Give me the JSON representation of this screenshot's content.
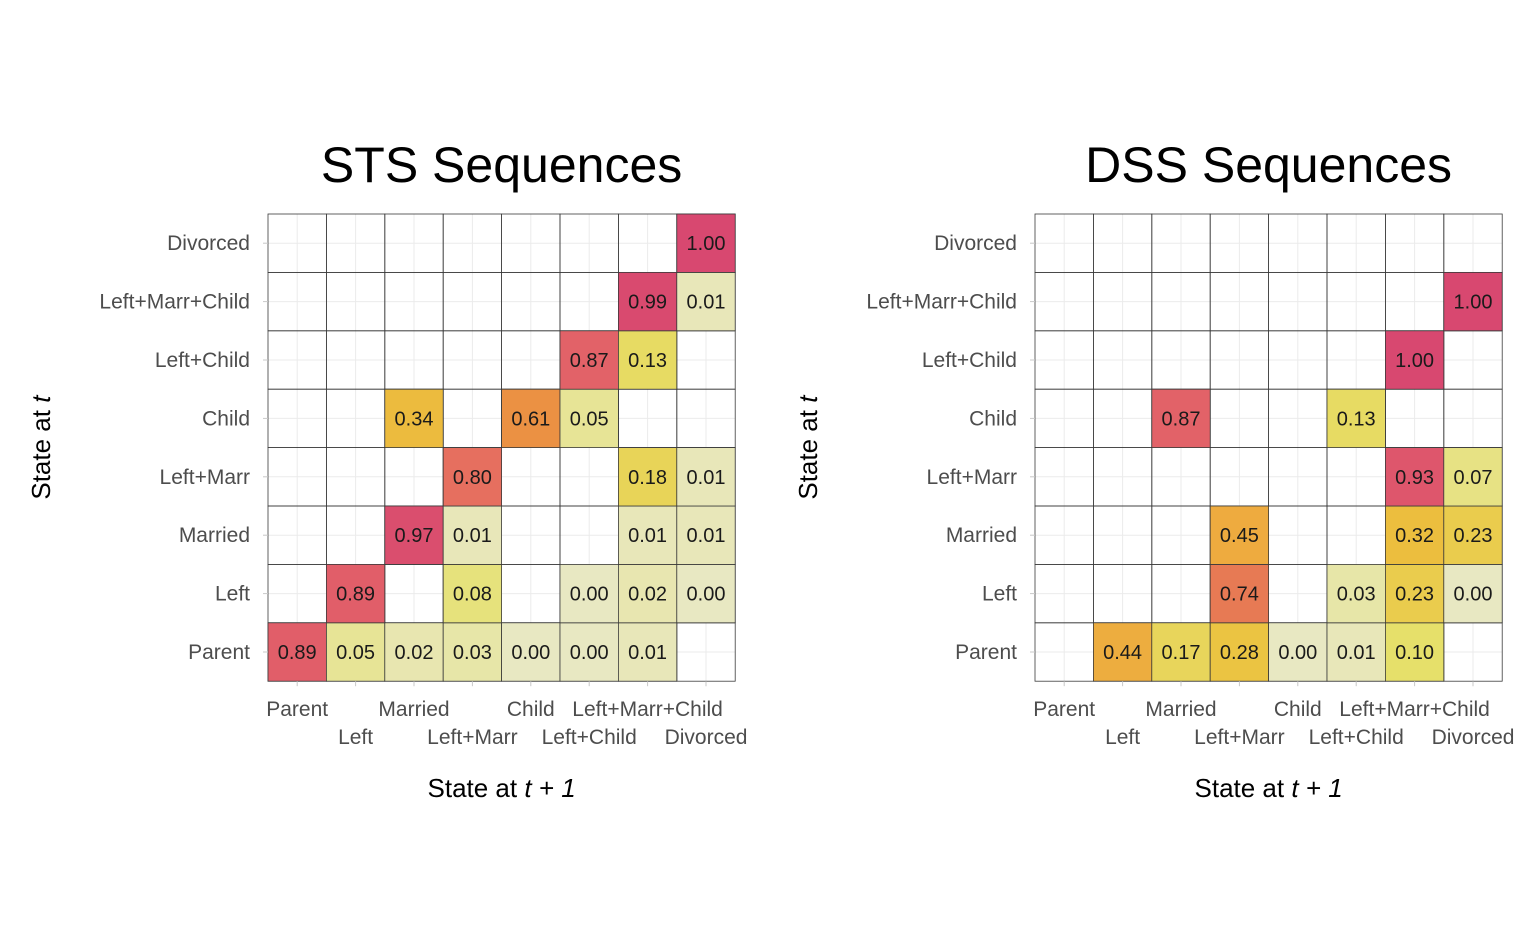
{
  "chart_data": [
    {
      "type": "heatmap",
      "title": "STS Sequences",
      "xlabel": {
        "prefix": "State at ",
        "italic": "t + 1"
      },
      "ylabel": {
        "prefix": "State at ",
        "italic": "t"
      },
      "states": [
        "Parent",
        "Left",
        "Married",
        "Left+Marr",
        "Child",
        "Left+Child",
        "Left+Marr+Child",
        "Divorced"
      ],
      "cells": [
        {
          "from": "Parent",
          "to": "Parent",
          "value": 0.89,
          "label": "0.89"
        },
        {
          "from": "Parent",
          "to": "Left",
          "value": 0.05,
          "label": "0.05"
        },
        {
          "from": "Parent",
          "to": "Married",
          "value": 0.02,
          "label": "0.02"
        },
        {
          "from": "Parent",
          "to": "Left+Marr",
          "value": 0.03,
          "label": "0.03"
        },
        {
          "from": "Parent",
          "to": "Child",
          "value": 0.0,
          "label": "0.00"
        },
        {
          "from": "Parent",
          "to": "Left+Child",
          "value": 0.0,
          "label": "0.00"
        },
        {
          "from": "Parent",
          "to": "Left+Marr+Child",
          "value": 0.01,
          "label": "0.01"
        },
        {
          "from": "Left",
          "to": "Left",
          "value": 0.89,
          "label": "0.89"
        },
        {
          "from": "Left",
          "to": "Left+Marr",
          "value": 0.08,
          "label": "0.08"
        },
        {
          "from": "Left",
          "to": "Left+Child",
          "value": 0.0,
          "label": "0.00"
        },
        {
          "from": "Left",
          "to": "Left+Marr+Child",
          "value": 0.02,
          "label": "0.02"
        },
        {
          "from": "Left",
          "to": "Divorced",
          "value": 0.0,
          "label": "0.00"
        },
        {
          "from": "Married",
          "to": "Married",
          "value": 0.97,
          "label": "0.97"
        },
        {
          "from": "Married",
          "to": "Left+Marr",
          "value": 0.01,
          "label": "0.01"
        },
        {
          "from": "Married",
          "to": "Left+Marr+Child",
          "value": 0.01,
          "label": "0.01"
        },
        {
          "from": "Married",
          "to": "Divorced",
          "value": 0.01,
          "label": "0.01"
        },
        {
          "from": "Left+Marr",
          "to": "Left+Marr",
          "value": 0.8,
          "label": "0.80"
        },
        {
          "from": "Left+Marr",
          "to": "Left+Marr+Child",
          "value": 0.18,
          "label": "0.18"
        },
        {
          "from": "Left+Marr",
          "to": "Divorced",
          "value": 0.01,
          "label": "0.01"
        },
        {
          "from": "Child",
          "to": "Married",
          "value": 0.34,
          "label": "0.34"
        },
        {
          "from": "Child",
          "to": "Child",
          "value": 0.61,
          "label": "0.61"
        },
        {
          "from": "Child",
          "to": "Left+Child",
          "value": 0.05,
          "label": "0.05"
        },
        {
          "from": "Left+Child",
          "to": "Left+Child",
          "value": 0.87,
          "label": "0.87"
        },
        {
          "from": "Left+Child",
          "to": "Left+Marr+Child",
          "value": 0.13,
          "label": "0.13"
        },
        {
          "from": "Left+Marr+Child",
          "to": "Left+Marr+Child",
          "value": 0.99,
          "label": "0.99"
        },
        {
          "from": "Left+Marr+Child",
          "to": "Divorced",
          "value": 0.01,
          "label": "0.01"
        },
        {
          "from": "Divorced",
          "to": "Divorced",
          "value": 1.0,
          "label": "1.00"
        }
      ]
    },
    {
      "type": "heatmap",
      "title": "DSS Sequences",
      "xlabel": {
        "prefix": "State at ",
        "italic": "t + 1"
      },
      "ylabel": {
        "prefix": "State at ",
        "italic": "t"
      },
      "states": [
        "Parent",
        "Left",
        "Married",
        "Left+Marr",
        "Child",
        "Left+Child",
        "Left+Marr+Child",
        "Divorced"
      ],
      "cells": [
        {
          "from": "Parent",
          "to": "Left",
          "value": 0.44,
          "label": "0.44"
        },
        {
          "from": "Parent",
          "to": "Married",
          "value": 0.17,
          "label": "0.17"
        },
        {
          "from": "Parent",
          "to": "Left+Marr",
          "value": 0.28,
          "label": "0.28"
        },
        {
          "from": "Parent",
          "to": "Child",
          "value": 0.0,
          "label": "0.00"
        },
        {
          "from": "Parent",
          "to": "Left+Child",
          "value": 0.01,
          "label": "0.01"
        },
        {
          "from": "Parent",
          "to": "Left+Marr+Child",
          "value": 0.1,
          "label": "0.10"
        },
        {
          "from": "Left",
          "to": "Left+Marr",
          "value": 0.74,
          "label": "0.74"
        },
        {
          "from": "Left",
          "to": "Left+Child",
          "value": 0.03,
          "label": "0.03"
        },
        {
          "from": "Left",
          "to": "Left+Marr+Child",
          "value": 0.23,
          "label": "0.23"
        },
        {
          "from": "Left",
          "to": "Divorced",
          "value": 0.0,
          "label": "0.00"
        },
        {
          "from": "Married",
          "to": "Left+Marr",
          "value": 0.45,
          "label": "0.45"
        },
        {
          "from": "Married",
          "to": "Left+Marr+Child",
          "value": 0.32,
          "label": "0.32"
        },
        {
          "from": "Married",
          "to": "Divorced",
          "value": 0.23,
          "label": "0.23"
        },
        {
          "from": "Left+Marr",
          "to": "Left+Marr+Child",
          "value": 0.93,
          "label": "0.93"
        },
        {
          "from": "Left+Marr",
          "to": "Divorced",
          "value": 0.07,
          "label": "0.07"
        },
        {
          "from": "Child",
          "to": "Married",
          "value": 0.87,
          "label": "0.87"
        },
        {
          "from": "Child",
          "to": "Left+Child",
          "value": 0.13,
          "label": "0.13"
        },
        {
          "from": "Left+Child",
          "to": "Left+Marr+Child",
          "value": 1.0,
          "label": "1.00"
        },
        {
          "from": "Left+Marr+Child",
          "to": "Divorced",
          "value": 1.0,
          "label": "1.00"
        }
      ]
    }
  ]
}
